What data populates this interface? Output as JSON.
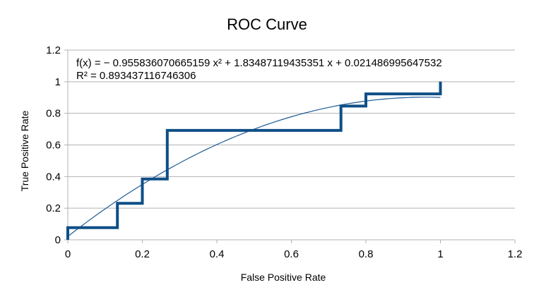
{
  "chart_data": {
    "type": "line",
    "title": "ROC Curve",
    "xlabel": "False Positive Rate",
    "ylabel": "True Positive Rate",
    "xlim": [
      0,
      1.2
    ],
    "ylim": [
      0,
      1.2
    ],
    "grid": "horizontal",
    "x_ticks": [
      0,
      0.2,
      0.4,
      0.6,
      0.8,
      1,
      1.2
    ],
    "y_ticks": [
      0,
      0.2,
      0.4,
      0.6,
      0.8,
      1,
      1.2
    ],
    "x_tick_labels": [
      "0",
      "0.2",
      "0.4",
      "0.6",
      "0.8",
      "1",
      "1.2"
    ],
    "y_tick_labels": [
      "0",
      "0.2",
      "0.4",
      "0.6",
      "0.8",
      "1",
      "1.2"
    ],
    "series": [
      {
        "style": "step",
        "color": "#0e4f87",
        "x": [
          0,
          0,
          0.133,
          0.133,
          0.2,
          0.2,
          0.267,
          0.267,
          0.733,
          0.733,
          0.8,
          0.8,
          1.0,
          1.0
        ],
        "y": [
          0,
          0.077,
          0.077,
          0.231,
          0.231,
          0.385,
          0.385,
          0.692,
          0.692,
          0.846,
          0.846,
          0.923,
          0.923,
          1.0
        ]
      },
      {
        "style": "trendline",
        "color": "#1d5a96",
        "fit": "polynomial",
        "coefficients": [
          -0.955836070665159,
          1.83487119435351,
          0.021486995647532
        ],
        "x_range": [
          0,
          1
        ]
      }
    ],
    "annotations": [
      "f(x) = − 0.955836070665159 x² + 1.83487119435351 x + 0.021486995647532",
      "R² = 0.893437116746306"
    ]
  }
}
